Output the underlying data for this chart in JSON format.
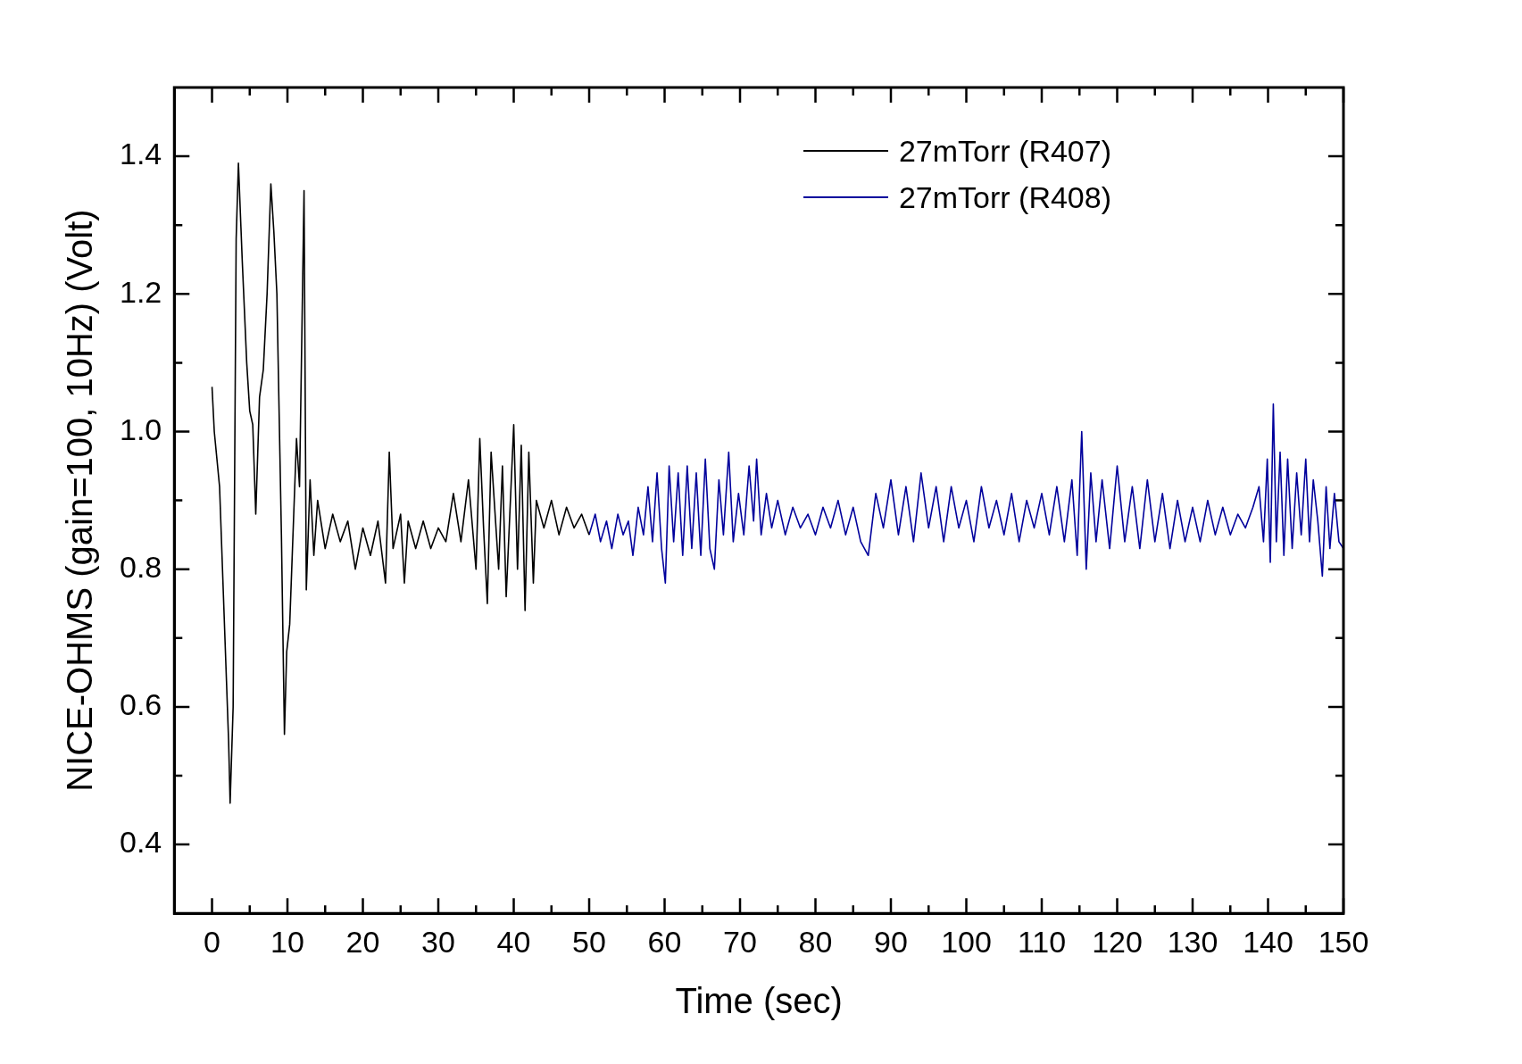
{
  "chart_data": {
    "type": "line",
    "xlabel": "Time (sec)",
    "ylabel": "NICE-OHMS (gain=100, 10Hz) (Volt)",
    "xlim": [
      -5,
      150
    ],
    "xticks": [
      0,
      {
        "value": 5,
        "label": null
      },
      10,
      {
        "value": 15,
        "label": null
      },
      20,
      {
        "value": 25,
        "label": null
      },
      30,
      {
        "value": 35,
        "label": null
      },
      40,
      {
        "value": 45,
        "label": null
      },
      50,
      {
        "value": 55,
        "label": null
      },
      60,
      {
        "value": 65,
        "label": null
      },
      70,
      {
        "value": 75,
        "label": null
      },
      80,
      {
        "value": 85,
        "label": null
      },
      90,
      {
        "value": 95,
        "label": null
      },
      100,
      {
        "value": 105,
        "label": null
      },
      110,
      {
        "value": 115,
        "label": null
      },
      120,
      {
        "value": 125,
        "label": null
      },
      130,
      {
        "value": 135,
        "label": null
      },
      140,
      {
        "value": 145,
        "label": null
      },
      150
    ],
    "ylim": [
      0.3,
      1.5
    ],
    "yticks": [
      0.4,
      {
        "value": 0.5,
        "label": null
      },
      0.6,
      {
        "value": 0.7,
        "label": null
      },
      0.8,
      {
        "value": 0.9,
        "label": null
      },
      {
        "value": 1,
        "label": "1.0"
      },
      {
        "value": 1.1,
        "label": null
      },
      1.2,
      {
        "value": 1.3,
        "label": null
      },
      1.4
    ],
    "legend": "top right",
    "series": [
      {
        "name": "27mTorr (R407)",
        "color": "#000000",
        "x": [
          0,
          0.3,
          1,
          2.2,
          2.4,
          2.8,
          3.2,
          3.5,
          4,
          4.6,
          5,
          5.4,
          5.8,
          6.3,
          6.8,
          7.3,
          7.8,
          8.2,
          8.6,
          9.2,
          9.6,
          9.9,
          10.3,
          10.8,
          11.2,
          11.6,
          12.2,
          12.5,
          13,
          13.5,
          14,
          15,
          16,
          17,
          18,
          19,
          20,
          21,
          22,
          23,
          23.5,
          24,
          25,
          25.5,
          26,
          27,
          28,
          29,
          30,
          31,
          32,
          33,
          34,
          35,
          35.5,
          36,
          36.5,
          37,
          38,
          38.5,
          39,
          40,
          40.5,
          41,
          41.5,
          42,
          42.6,
          43,
          44,
          45,
          46,
          47,
          48,
          49,
          50
        ],
        "values": [
          1.065,
          1.0,
          0.92,
          0.55,
          0.46,
          0.6,
          1.28,
          1.39,
          1.25,
          1.1,
          1.03,
          1.01,
          0.88,
          1.05,
          1.09,
          1.2,
          1.36,
          1.29,
          1.2,
          0.85,
          0.56,
          0.68,
          0.72,
          0.87,
          0.99,
          0.92,
          1.35,
          0.77,
          0.93,
          0.82,
          0.9,
          0.83,
          0.88,
          0.84,
          0.87,
          0.8,
          0.86,
          0.82,
          0.87,
          0.78,
          0.97,
          0.83,
          0.88,
          0.78,
          0.87,
          0.83,
          0.87,
          0.83,
          0.86,
          0.84,
          0.91,
          0.84,
          0.93,
          0.8,
          0.99,
          0.86,
          0.75,
          0.97,
          0.8,
          0.95,
          0.76,
          1.01,
          0.8,
          0.98,
          0.74,
          0.97,
          0.78,
          0.9,
          0.86,
          0.9,
          0.85,
          0.89,
          0.86,
          0.88,
          0.85
        ]
      },
      {
        "name": "27mTorr (R408)",
        "color": "#00009c",
        "x": [
          50,
          50.8,
          51.5,
          52.3,
          53,
          53.8,
          54.5,
          55.2,
          55.8,
          56.5,
          57.2,
          57.8,
          58.4,
          59,
          59.6,
          60.1,
          60.6,
          61.2,
          61.8,
          62.4,
          63,
          63.6,
          64.2,
          64.8,
          65.4,
          66,
          66.6,
          67.2,
          67.8,
          68.5,
          69.1,
          69.8,
          70.5,
          71.2,
          71.8,
          72.2,
          72.8,
          73.5,
          74.2,
          75,
          76,
          77,
          78,
          79,
          80,
          81,
          82,
          83,
          84,
          85,
          86,
          87,
          88,
          89,
          90,
          91,
          92,
          93,
          94,
          95,
          96,
          97,
          98,
          99,
          100,
          101,
          102,
          103,
          104,
          105,
          106,
          107,
          108,
          109,
          110,
          111,
          112,
          113,
          114,
          114.7,
          115.3,
          115.9,
          116.5,
          117.2,
          118,
          119,
          120,
          121,
          122,
          123,
          124,
          125,
          126,
          127,
          128,
          129,
          130,
          131,
          132,
          133,
          134,
          135,
          136,
          137,
          138,
          138.8,
          139.4,
          139.9,
          140.3,
          140.7,
          141.1,
          141.6,
          142.1,
          142.6,
          143.2,
          143.8,
          144.4,
          145,
          145.5,
          146,
          146.6,
          147.2,
          147.7,
          148.2,
          148.8,
          149.4,
          150
        ],
        "values": [
          0.85,
          0.88,
          0.84,
          0.87,
          0.83,
          0.88,
          0.85,
          0.87,
          0.82,
          0.89,
          0.85,
          0.92,
          0.84,
          0.94,
          0.83,
          0.78,
          0.95,
          0.84,
          0.94,
          0.82,
          0.95,
          0.83,
          0.94,
          0.82,
          0.96,
          0.83,
          0.8,
          0.93,
          0.85,
          0.97,
          0.84,
          0.91,
          0.85,
          0.95,
          0.87,
          0.96,
          0.85,
          0.91,
          0.86,
          0.9,
          0.85,
          0.89,
          0.86,
          0.88,
          0.85,
          0.89,
          0.86,
          0.9,
          0.85,
          0.89,
          0.84,
          0.82,
          0.91,
          0.86,
          0.93,
          0.85,
          0.92,
          0.84,
          0.94,
          0.86,
          0.92,
          0.84,
          0.92,
          0.86,
          0.9,
          0.84,
          0.92,
          0.86,
          0.9,
          0.85,
          0.91,
          0.84,
          0.9,
          0.86,
          0.91,
          0.85,
          0.92,
          0.84,
          0.93,
          0.82,
          1.0,
          0.8,
          0.94,
          0.84,
          0.93,
          0.83,
          0.95,
          0.84,
          0.92,
          0.83,
          0.93,
          0.84,
          0.91,
          0.83,
          0.9,
          0.84,
          0.89,
          0.84,
          0.9,
          0.85,
          0.89,
          0.85,
          0.88,
          0.86,
          0.89,
          0.92,
          0.84,
          0.96,
          0.81,
          1.04,
          0.84,
          0.97,
          0.82,
          0.96,
          0.83,
          0.94,
          0.85,
          0.96,
          0.84,
          0.93,
          0.87,
          0.79,
          0.92,
          0.83,
          0.91,
          0.84,
          0.83
        ]
      }
    ]
  }
}
